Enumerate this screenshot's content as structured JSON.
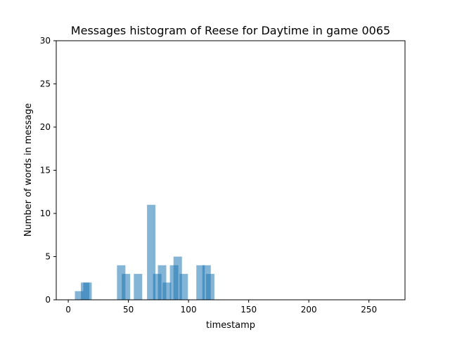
{
  "chart_data": {
    "type": "bar",
    "title": "Messages histogram of Reese for Daytime in game 0065",
    "xlabel": "timestamp",
    "ylabel": "Number of words in message",
    "xlim": [
      -10,
      280
    ],
    "ylim": [
      0,
      30
    ],
    "xticks": [
      0,
      50,
      100,
      150,
      200,
      250
    ],
    "yticks": [
      0,
      5,
      10,
      15,
      20,
      25,
      30
    ],
    "bar_width": 7,
    "bar_color": "#1f77b4",
    "bar_opacity": 0.55,
    "grid": false,
    "bars": [
      {
        "x": 9,
        "value": 1
      },
      {
        "x": 14,
        "value": 2
      },
      {
        "x": 16,
        "value": 2
      },
      {
        "x": 44,
        "value": 4
      },
      {
        "x": 48,
        "value": 3
      },
      {
        "x": 58,
        "value": 3
      },
      {
        "x": 69,
        "value": 11
      },
      {
        "x": 74,
        "value": 3
      },
      {
        "x": 78,
        "value": 4
      },
      {
        "x": 82,
        "value": 2
      },
      {
        "x": 88,
        "value": 4
      },
      {
        "x": 91,
        "value": 5
      },
      {
        "x": 96,
        "value": 3
      },
      {
        "x": 110,
        "value": 4
      },
      {
        "x": 115,
        "value": 4
      },
      {
        "x": 118,
        "value": 3
      }
    ]
  }
}
